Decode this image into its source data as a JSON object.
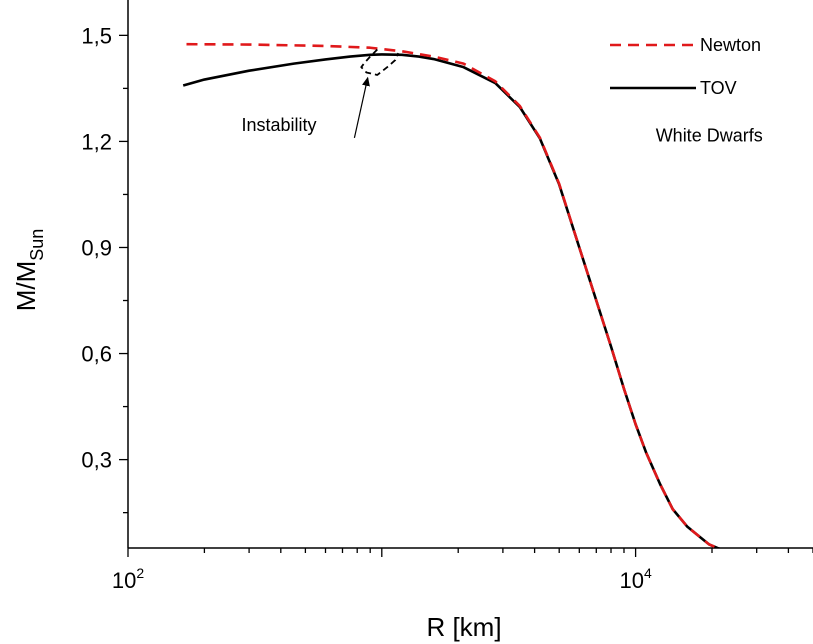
{
  "chart_data": {
    "type": "line",
    "xscale": "log",
    "xlim": [
      100,
      50000
    ],
    "ylim": [
      0.05,
      1.6
    ],
    "xlabel": "R [km]",
    "ylabel_main": "M/M",
    "ylabel_sub": "Sun",
    "xticks": [
      {
        "value": 100,
        "base": "10",
        "exp": "2"
      },
      {
        "value": 10000,
        "base": "10",
        "exp": "4"
      }
    ],
    "yticks": [
      {
        "value": 0.3,
        "label": "0,3"
      },
      {
        "value": 0.6,
        "label": "0,6"
      },
      {
        "value": 0.9,
        "label": "0,9"
      },
      {
        "value": 1.2,
        "label": "1,2"
      },
      {
        "value": 1.5,
        "label": "1,5"
      }
    ],
    "series": [
      {
        "name": "Newton",
        "color": "#e0191b",
        "style": "dashed",
        "x": [
          170,
          300,
          600,
          900,
          1200,
          1600,
          2100,
          2800,
          3500,
          4200,
          5000,
          6000,
          7000,
          8000,
          9000,
          10000,
          11000,
          12500,
          14000,
          16000,
          18000,
          19500,
          21000,
          22500
        ],
        "y": [
          1.475,
          1.474,
          1.47,
          1.465,
          1.455,
          1.44,
          1.42,
          1.37,
          1.3,
          1.21,
          1.08,
          0.9,
          0.75,
          0.62,
          0.5,
          0.4,
          0.32,
          0.23,
          0.16,
          0.11,
          0.08,
          0.06,
          0.05,
          0.043
        ]
      },
      {
        "name": "TOV",
        "color": "#000000",
        "style": "solid",
        "x": [
          165,
          200,
          300,
          450,
          600,
          750,
          900,
          1000,
          1200,
          1400,
          1600,
          2100,
          2800,
          3500,
          4200,
          5000,
          6000,
          7000,
          8000,
          9000,
          10000,
          11000,
          12500,
          14000,
          16000,
          18000,
          19500,
          21000,
          22500
        ],
        "y": [
          1.358,
          1.375,
          1.4,
          1.42,
          1.432,
          1.44,
          1.445,
          1.446,
          1.445,
          1.44,
          1.433,
          1.41,
          1.365,
          1.297,
          1.208,
          1.078,
          0.9,
          0.75,
          0.62,
          0.5,
          0.4,
          0.32,
          0.23,
          0.16,
          0.11,
          0.08,
          0.06,
          0.05,
          0.043
        ]
      },
      {
        "name": "zoom-loop",
        "color": "#000000",
        "style": "dashed",
        "x": [
          960,
          900,
          850,
          830,
          870,
          960,
          1050,
          1130,
          1160
        ],
        "y": [
          1.46,
          1.44,
          1.42,
          1.41,
          1.395,
          1.388,
          1.41,
          1.43,
          1.45
        ]
      }
    ],
    "annotations": [
      {
        "text": "Instability",
        "x": 280,
        "y": 1.23
      },
      {
        "text": "White Dwarfs",
        "x": 12000,
        "y": 1.2
      }
    ],
    "arrow": {
      "from": [
        780,
        1.21
      ],
      "to": [
        880,
        1.38
      ]
    },
    "legend": {
      "position": "top-right",
      "items": [
        {
          "label": "Newton",
          "color": "#e0191b",
          "style": "dashed"
        },
        {
          "label": "TOV",
          "color": "#000000",
          "style": "solid"
        }
      ]
    }
  }
}
